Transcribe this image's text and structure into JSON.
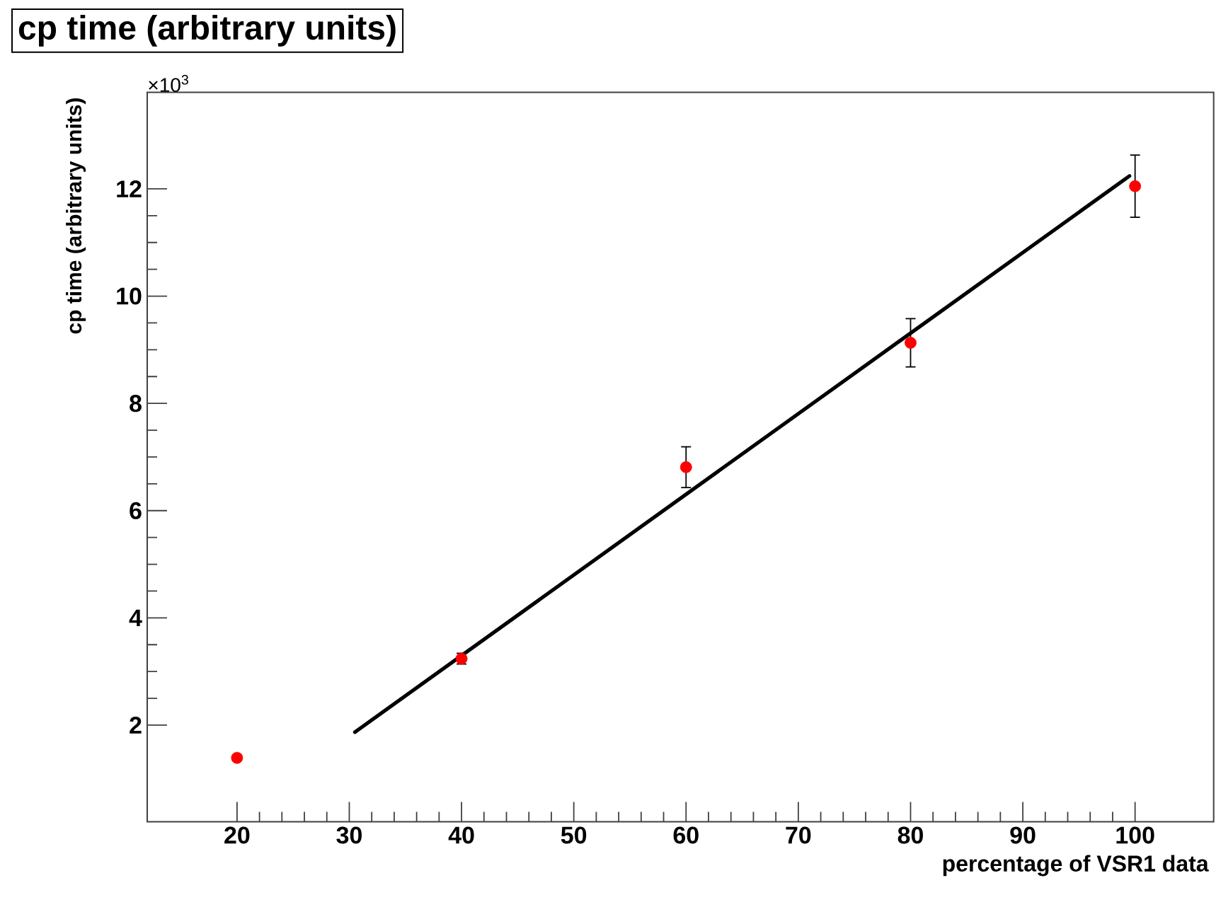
{
  "chart_data": {
    "type": "scatter",
    "title": "cp time (arbitrary units)",
    "xlabel": "percentage of VSR1 data",
    "ylabel": "cp time (arbitrary units)",
    "annotations": [
      "×10$^{3}$"
    ],
    "xlim": [
      12,
      107
    ],
    "ylim": [
      0.2,
      13.8
    ],
    "xticks": [
      20,
      30,
      40,
      50,
      60,
      70,
      80,
      90,
      100
    ],
    "yticks": [
      2,
      4,
      6,
      8,
      10,
      12
    ],
    "series": [
      {
        "color": "#ff0000",
        "marker": "circle",
        "x": [
          20,
          40,
          60,
          80,
          100
        ],
        "values": [
          1.39,
          3.24,
          6.81,
          9.13,
          12.05
        ],
        "errors": [
          0.05,
          0.1,
          0.38,
          0.45,
          0.58
        ]
      },
      {
        "type": "line",
        "color": "#000000",
        "line_style": "solid",
        "marker": "none",
        "x": [
          30.5,
          99.5
        ],
        "values": [
          1.87,
          12.24
        ]
      }
    ]
  }
}
